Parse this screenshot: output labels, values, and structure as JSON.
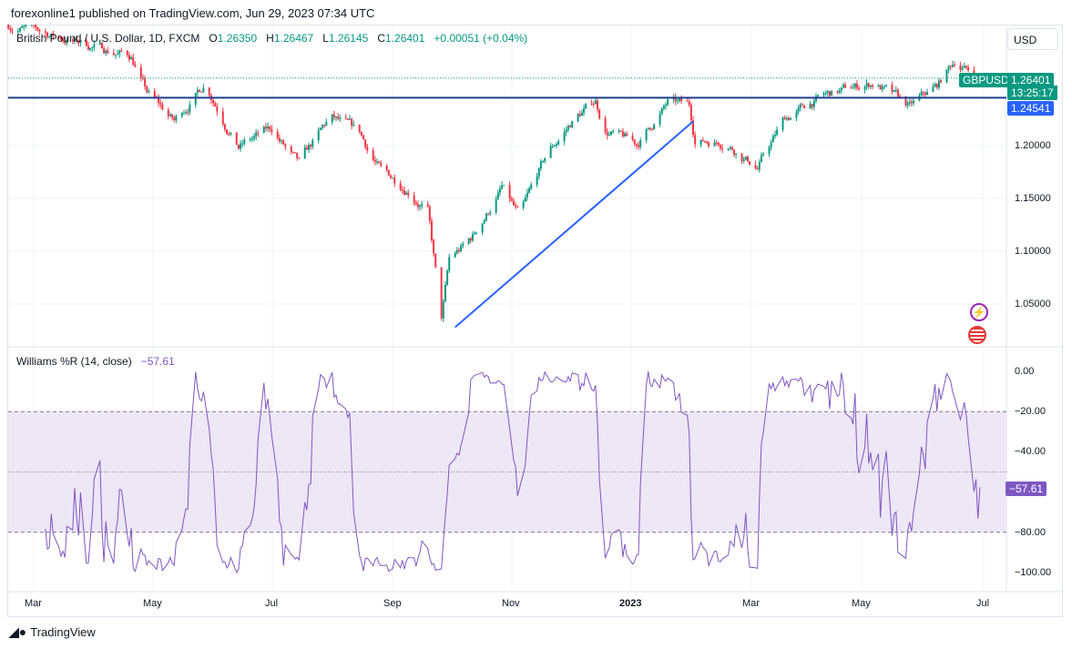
{
  "header": {
    "published": "forexonline1 published on TradingView.com, Jun 29, 2023 07:34 UTC"
  },
  "legend": {
    "symbol": "British Pound / U.S. Dollar, 1D, FXCM",
    "o_label": "O",
    "o": "1.26350",
    "h_label": "H",
    "h": "1.26467",
    "l_label": "L",
    "l": "1.26145",
    "c_label": "C",
    "c": "1.26401",
    "change": "+0.00051 (+0.04%)"
  },
  "currency_button": "USD",
  "price_labels": {
    "symbol": "GBPUSD",
    "last": "1.26401",
    "countdown": "13:25:17",
    "line": "1.24541"
  },
  "indicator": {
    "name": "Williams %R (14, close)",
    "value": "−57.61",
    "value_label": "−57.61"
  },
  "price_ticks": [
    "1.20000",
    "1.15000",
    "1.10000",
    "1.05000"
  ],
  "wr_ticks": [
    "0.00",
    "−20.00",
    "−40.00",
    "−80.00",
    "−100.00"
  ],
  "time_ticks": [
    "Mar",
    "May",
    "Jul",
    "Sep",
    "Nov",
    "2023",
    "Mar",
    "May",
    "Jul"
  ],
  "footer": {
    "brand": "TradingView"
  },
  "colors": {
    "up": "#089981",
    "down": "#f23645",
    "trendline": "#2962ff",
    "wr_line": "#7e57c2",
    "wr_band": "#ede7f6"
  },
  "chart_data": {
    "type": "candlestick",
    "symbol": "GBPUSD",
    "interval": "1D",
    "price_path": [
      [
        "2022-02-16",
        1.315
      ],
      [
        "2022-04-20",
        1.285
      ],
      [
        "2022-04-28",
        1.25
      ],
      [
        "2022-05-12",
        1.222
      ],
      [
        "2022-05-28",
        1.26
      ],
      [
        "2022-06-14",
        1.2
      ],
      [
        "2022-07-01",
        1.215
      ],
      [
        "2022-07-15",
        1.18
      ],
      [
        "2022-07-31",
        1.225
      ],
      [
        "2022-08-15",
        1.21
      ],
      [
        "2022-08-26",
        1.175
      ],
      [
        "2022-09-09",
        1.16
      ],
      [
        "2022-09-19",
        1.14
      ],
      [
        "2022-09-26",
        1.035
      ],
      [
        "2022-09-30",
        1.09
      ],
      [
        "2022-10-11",
        1.11
      ],
      [
        "2022-10-27",
        1.16
      ],
      [
        "2022-11-05",
        1.13
      ],
      [
        "2022-11-19",
        1.19
      ],
      [
        "2022-12-03",
        1.225
      ],
      [
        "2022-12-14",
        1.242
      ],
      [
        "2022-12-19",
        1.215
      ],
      [
        "2023-01-04",
        1.2
      ],
      [
        "2023-01-20",
        1.24
      ],
      [
        "2023-01-31",
        1.236
      ],
      [
        "2023-02-03",
        1.205
      ],
      [
        "2023-02-19",
        1.205
      ],
      [
        "2023-03-07",
        1.18
      ],
      [
        "2023-03-21",
        1.225
      ],
      [
        "2023-04-08",
        1.245
      ],
      [
        "2023-05-06",
        1.26
      ],
      [
        "2023-05-24",
        1.235
      ],
      [
        "2023-06-07",
        1.255
      ],
      [
        "2023-06-16",
        1.28
      ],
      [
        "2023-06-29",
        1.264
      ]
    ],
    "last": {
      "open": 1.2635,
      "high": 1.26467,
      "low": 1.26145,
      "close": 1.26401
    },
    "horizontal_line": 1.24541,
    "trendline": [
      [
        "2022-10-03",
        1.028
      ],
      [
        "2023-02-02",
        1.223
      ]
    ],
    "y_ticks": [
      1.2,
      1.15,
      1.1,
      1.05
    ],
    "indicator": {
      "name": "Williams %R",
      "period": 14,
      "source": "close",
      "last": -57.61,
      "levels": [
        -20,
        -50,
        -80
      ],
      "range": [
        -100,
        0
      ]
    }
  }
}
